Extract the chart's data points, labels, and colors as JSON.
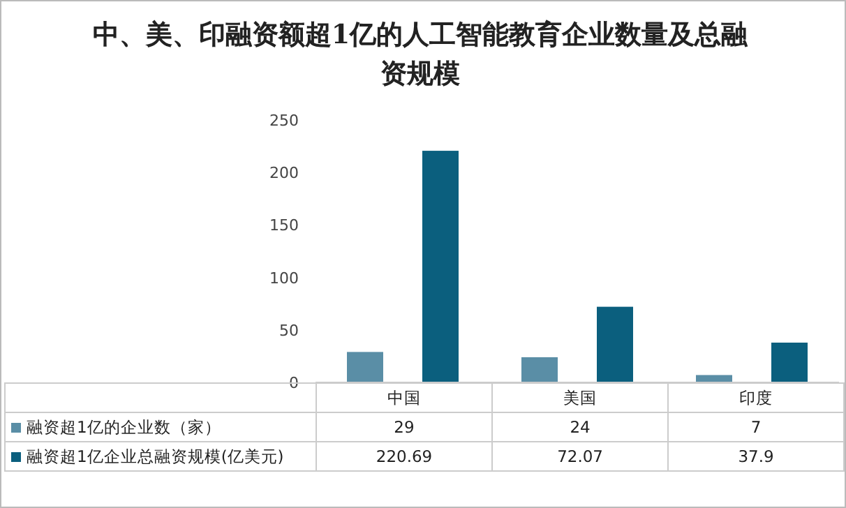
{
  "chart_data": {
    "type": "bar",
    "title": "中、美、印融资额超1亿的人工智能教育企业数量及总融资规模",
    "categories": [
      "中国",
      "美国",
      "印度"
    ],
    "series": [
      {
        "name": "融资超1亿的企业数（家）",
        "color": "#5a8ea6",
        "values": [
          29,
          24,
          7
        ]
      },
      {
        "name": "融资超1亿企业总融资规模(亿美元)",
        "color": "#0b5f7e",
        "values": [
          220.69,
          72.07,
          37.9
        ]
      }
    ],
    "ylim": [
      0,
      250
    ],
    "yticks": [
      0,
      50,
      100,
      150,
      200,
      250
    ],
    "data_labels": true,
    "grid": false,
    "legend": "bottom"
  }
}
